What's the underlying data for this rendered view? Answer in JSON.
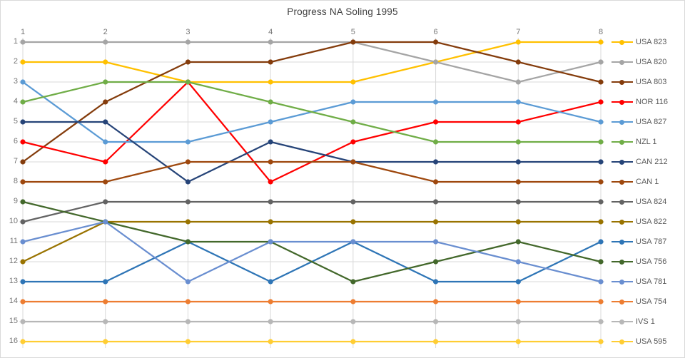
{
  "title": "Progress NA Soling 1995",
  "axes": {
    "x_labels": [
      "1",
      "2",
      "3",
      "4",
      "5",
      "6",
      "7",
      "8"
    ],
    "y_labels": [
      "1",
      "2",
      "3",
      "4",
      "5",
      "6",
      "7",
      "8",
      "9",
      "10",
      "11",
      "12",
      "13",
      "14",
      "15",
      "16"
    ]
  },
  "figure": {
    "background": "#FFFFFF",
    "border_color": "#D9D9D9",
    "gridline_color": "#D9D9D9",
    "title_color": "#404040",
    "axis_label_color": "#757575",
    "legend_text_color": "#595959"
  },
  "chart_data": {
    "type": "line",
    "title": "Progress NA Soling 1995",
    "xlabel": "",
    "ylabel": "",
    "x": [
      1,
      2,
      3,
      4,
      5,
      6,
      7,
      8
    ],
    "x_axis_position": "top",
    "y_axis_inverted": true,
    "ylim": [
      1,
      16
    ],
    "grid": true,
    "legend_position": "right",
    "series": [
      {
        "name": "USA 823",
        "color": "#FFC000",
        "values": [
          2,
          2,
          3,
          3,
          3,
          2,
          1,
          1
        ]
      },
      {
        "name": "USA 820",
        "color": "#A5A5A5",
        "values": [
          1,
          1,
          1,
          1,
          1,
          2,
          3,
          2
        ]
      },
      {
        "name": "USA 803",
        "color": "#843C0C",
        "values": [
          7,
          4,
          2,
          2,
          1,
          1,
          2,
          3
        ]
      },
      {
        "name": "NOR 116",
        "color": "#FF0000",
        "values": [
          6,
          7,
          3,
          8,
          6,
          5,
          5,
          4
        ]
      },
      {
        "name": "USA 827",
        "color": "#5B9BD5",
        "values": [
          3,
          6,
          6,
          5,
          4,
          4,
          4,
          5
        ]
      },
      {
        "name": "NZL 1",
        "color": "#70AD47",
        "values": [
          4,
          3,
          3,
          4,
          5,
          6,
          6,
          6
        ]
      },
      {
        "name": "CAN 212",
        "color": "#264478",
        "values": [
          5,
          5,
          8,
          6,
          7,
          7,
          7,
          7
        ]
      },
      {
        "name": "CAN 1",
        "color": "#9E480E",
        "values": [
          8,
          8,
          7,
          7,
          7,
          8,
          8,
          8
        ]
      },
      {
        "name": "USA 824",
        "color": "#636363",
        "values": [
          10,
          9,
          9,
          9,
          9,
          9,
          9,
          9
        ]
      },
      {
        "name": "USA 822",
        "color": "#997300",
        "values": [
          12,
          10,
          10,
          10,
          10,
          10,
          10,
          10
        ]
      },
      {
        "name": "USA 787",
        "color": "#2E75B6",
        "values": [
          13,
          13,
          11,
          13,
          11,
          13,
          13,
          11
        ]
      },
      {
        "name": "USA 756",
        "color": "#43682B",
        "values": [
          9,
          10,
          11,
          11,
          13,
          12,
          11,
          12
        ]
      },
      {
        "name": "USA 781",
        "color": "#698ED0",
        "values": [
          11,
          10,
          13,
          11,
          11,
          11,
          12,
          13
        ]
      },
      {
        "name": "USA 754",
        "color": "#ED7D31",
        "values": [
          14,
          14,
          14,
          14,
          14,
          14,
          14,
          14
        ]
      },
      {
        "name": "IVS 1",
        "color": "#B7B7B7",
        "values": [
          15,
          15,
          15,
          15,
          15,
          15,
          15,
          15
        ]
      },
      {
        "name": "USA 595",
        "color": "#FFCD33",
        "values": [
          16,
          16,
          16,
          16,
          16,
          16,
          16,
          16
        ]
      }
    ]
  }
}
